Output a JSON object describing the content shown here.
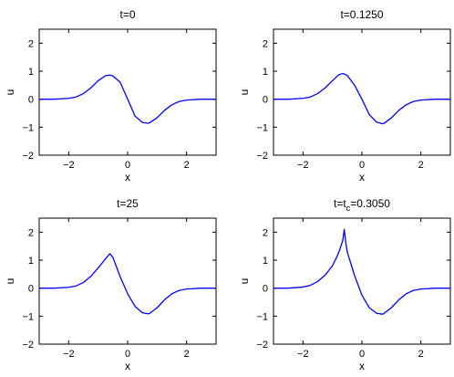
{
  "chart_data": [
    {
      "type": "line",
      "title": "t=0",
      "xlabel": "x",
      "ylabel": "u",
      "xlim": [
        -3,
        3
      ],
      "ylim": [
        -2,
        2.5
      ],
      "xticks": [
        -2,
        0,
        2
      ],
      "yticks": [
        -2,
        -1,
        0,
        1,
        2
      ],
      "grid": false,
      "color": "#0000ff",
      "series": [
        {
          "x": [
            -3,
            -2.5,
            -2,
            -1.75,
            -1.5,
            -1.25,
            -1,
            -0.75,
            -0.6,
            -0.5,
            -0.25,
            0,
            0.25,
            0.5,
            0.7,
            0.75,
            1,
            1.25,
            1.5,
            1.75,
            2,
            2.5,
            3
          ],
          "y": [
            0.0,
            0.0,
            0.03,
            0.08,
            0.2,
            0.4,
            0.66,
            0.84,
            0.86,
            0.83,
            0.6,
            0.0,
            -0.6,
            -0.83,
            -0.86,
            -0.84,
            -0.66,
            -0.4,
            -0.2,
            -0.08,
            -0.03,
            0.0,
            0.0
          ]
        }
      ]
    },
    {
      "type": "line",
      "title": "t=0.1250",
      "xlabel": "x",
      "ylabel": "u",
      "xlim": [
        -3,
        3
      ],
      "ylim": [
        -2,
        2.5
      ],
      "xticks": [
        -2,
        0,
        2
      ],
      "yticks": [
        -2,
        -1,
        0,
        1,
        2
      ],
      "grid": false,
      "color": "#0000ff",
      "series": [
        {
          "x": [
            -3,
            -2.5,
            -2,
            -1.75,
            -1.5,
            -1.25,
            -1,
            -0.8,
            -0.65,
            -0.5,
            -0.25,
            0,
            0.25,
            0.5,
            0.7,
            0.75,
            1,
            1.25,
            1.5,
            1.75,
            2,
            2.5,
            3
          ],
          "y": [
            0.0,
            0.0,
            0.03,
            0.08,
            0.2,
            0.4,
            0.66,
            0.86,
            0.92,
            0.85,
            0.5,
            0.0,
            -0.55,
            -0.82,
            -0.88,
            -0.86,
            -0.67,
            -0.4,
            -0.2,
            -0.08,
            -0.03,
            0.0,
            0.0
          ]
        }
      ]
    },
    {
      "type": "line",
      "title": "t=25",
      "xlabel": "x",
      "ylabel": "u",
      "xlim": [
        -3,
        3
      ],
      "ylim": [
        -2,
        2.5
      ],
      "xticks": [
        -2,
        0,
        2
      ],
      "yticks": [
        -2,
        -1,
        0,
        1,
        2
      ],
      "grid": false,
      "color": "#0000ff",
      "series": [
        {
          "x": [
            -3,
            -2.5,
            -2,
            -1.75,
            -1.5,
            -1.25,
            -1,
            -0.75,
            -0.6,
            -0.5,
            -0.25,
            0,
            0.25,
            0.5,
            0.7,
            0.75,
            1,
            1.25,
            1.5,
            1.75,
            2,
            2.5,
            3
          ],
          "y": [
            0.0,
            0.0,
            0.03,
            0.08,
            0.2,
            0.42,
            0.72,
            1.05,
            1.23,
            1.1,
            0.4,
            -0.2,
            -0.65,
            -0.88,
            -0.92,
            -0.9,
            -0.7,
            -0.42,
            -0.2,
            -0.08,
            -0.03,
            0.0,
            0.0
          ]
        }
      ]
    },
    {
      "type": "line",
      "title": "t=t",
      "title_subscript": "c",
      "title_suffix": "=0.3050",
      "xlabel": "x",
      "ylabel": "u",
      "xlim": [
        -3,
        3
      ],
      "ylim": [
        -2,
        2.5
      ],
      "xticks": [
        -2,
        0,
        2
      ],
      "yticks": [
        -2,
        -1,
        0,
        1,
        2
      ],
      "grid": false,
      "color": "#0000ff",
      "series": [
        {
          "x": [
            -3,
            -2.5,
            -2,
            -1.75,
            -1.5,
            -1.25,
            -1,
            -0.85,
            -0.75,
            -0.65,
            -0.6,
            -0.55,
            -0.5,
            -0.25,
            0,
            0.25,
            0.5,
            0.7,
            0.75,
            1,
            1.25,
            1.5,
            1.75,
            2,
            2.5,
            3
          ],
          "y": [
            0.0,
            0.0,
            0.04,
            0.1,
            0.24,
            0.46,
            0.8,
            1.12,
            1.38,
            1.7,
            2.1,
            1.65,
            1.3,
            0.45,
            -0.25,
            -0.7,
            -0.9,
            -0.93,
            -0.9,
            -0.7,
            -0.42,
            -0.2,
            -0.08,
            -0.03,
            0.0,
            0.0
          ]
        }
      ]
    }
  ]
}
